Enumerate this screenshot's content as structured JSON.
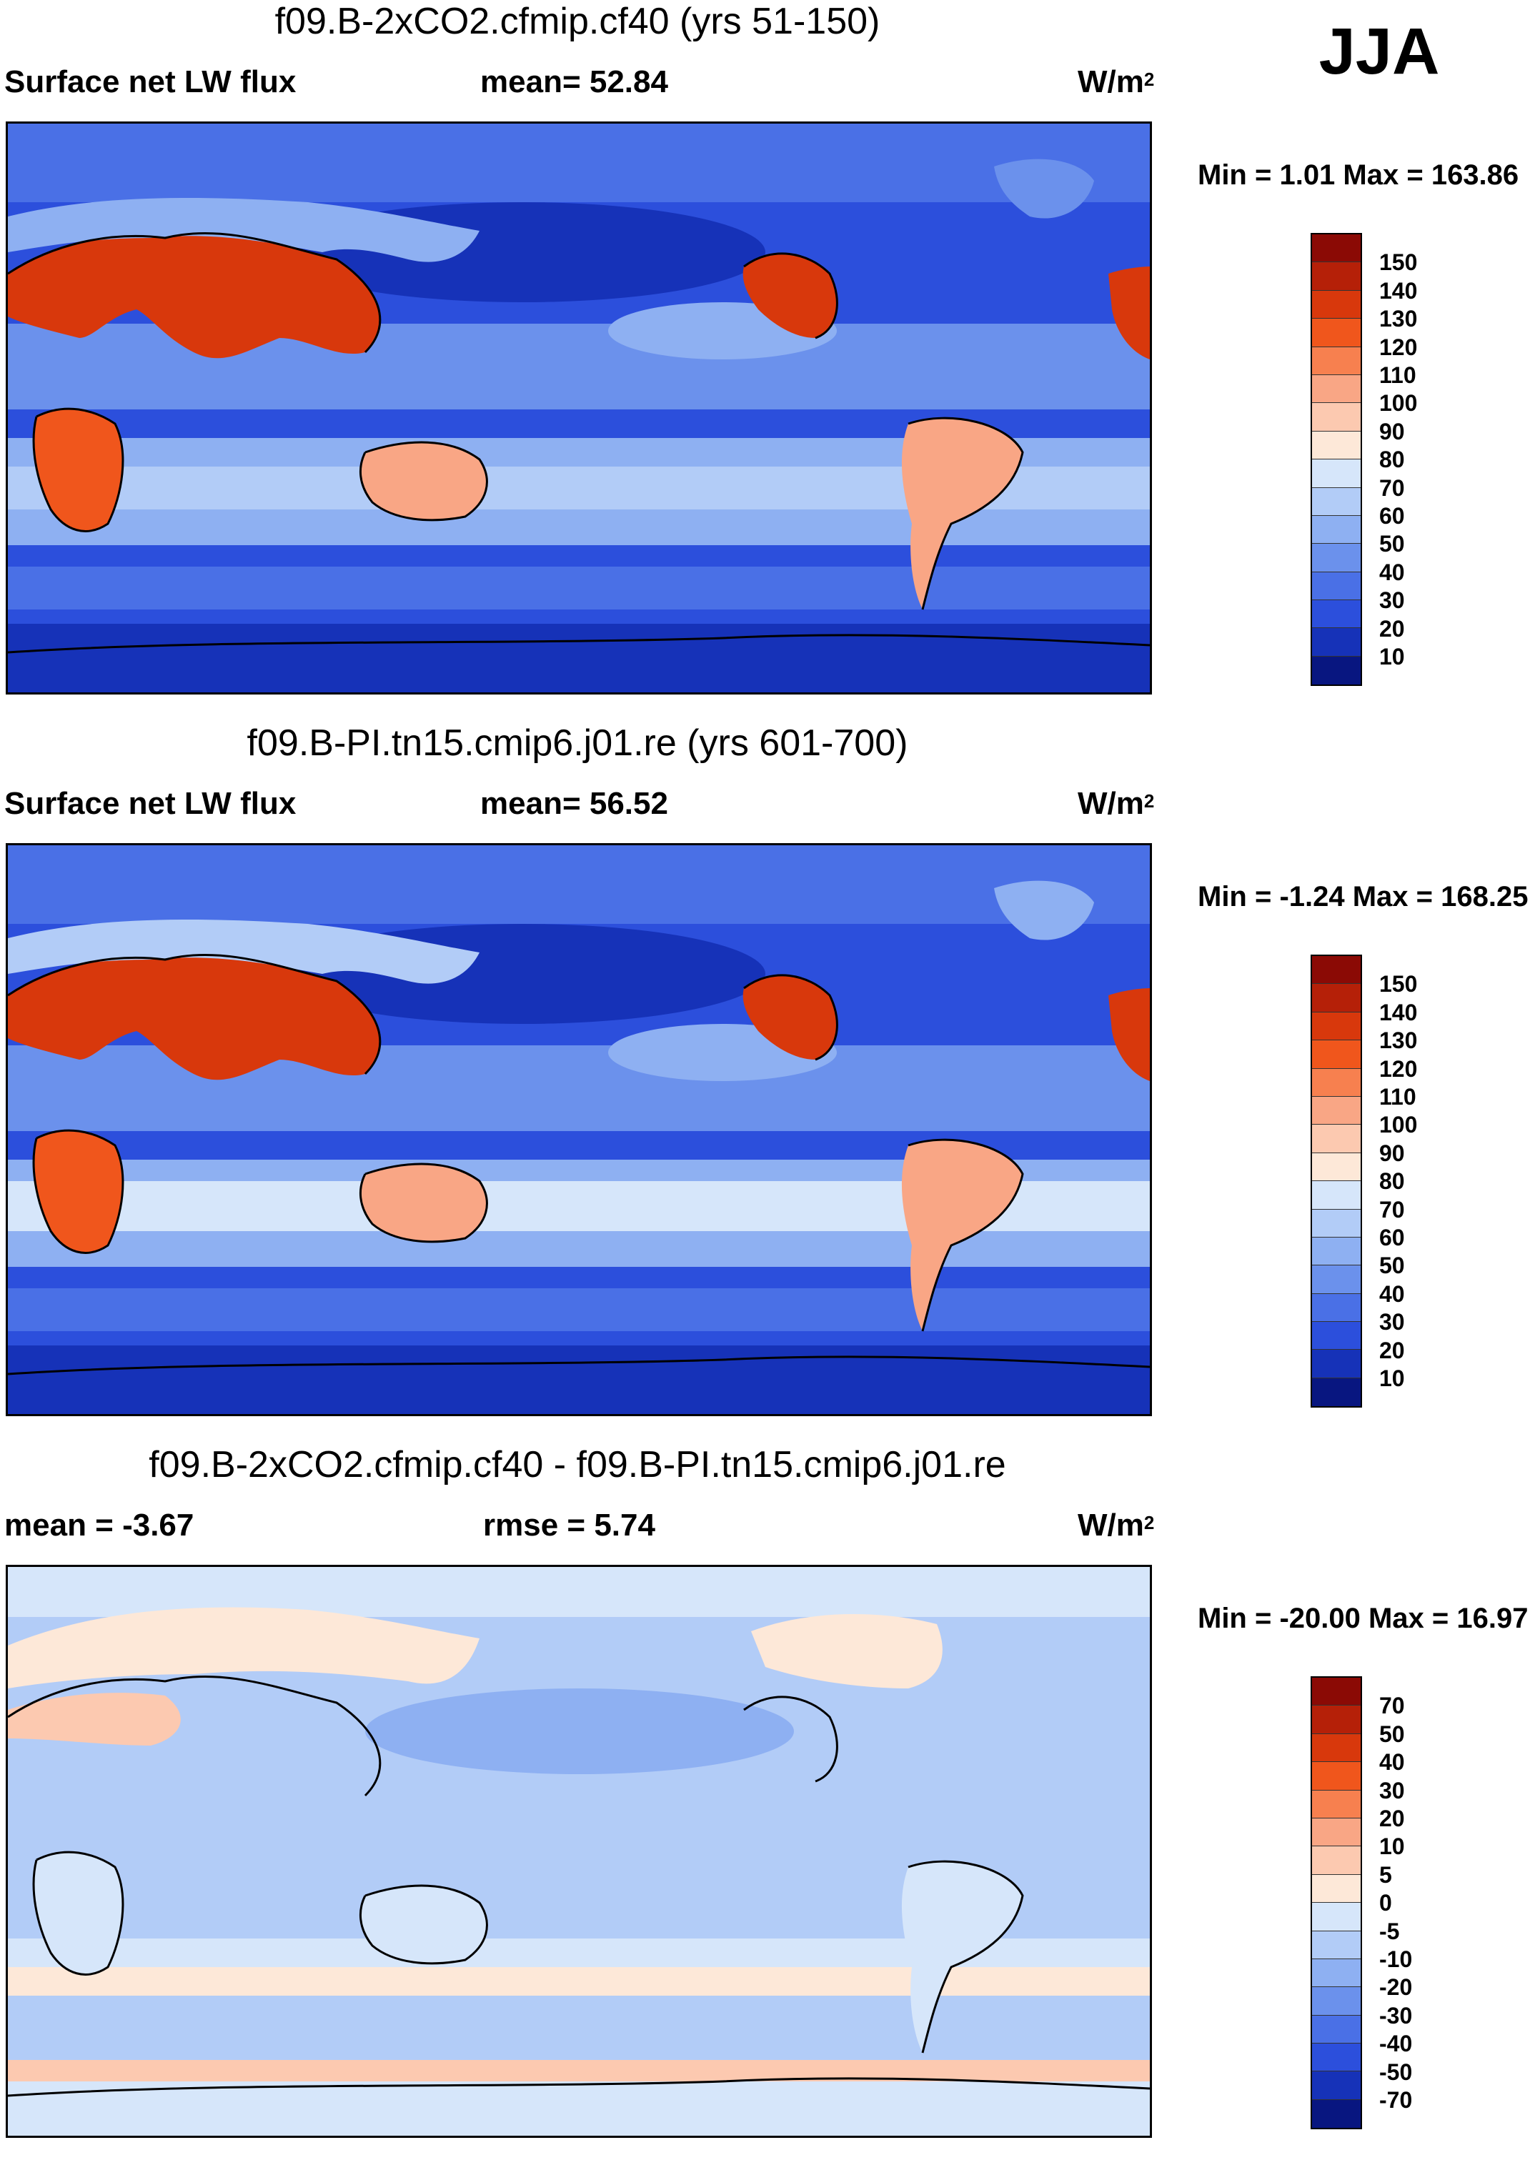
{
  "season_label": "JJA",
  "panels": [
    {
      "title": "f09.B-2xCO2.cfmip.cf40 (yrs 51-150)",
      "left_label": "Surface net LW flux",
      "mid_label": "mean=  52.84",
      "unit": "W/m",
      "unit_sup": "2",
      "minmax": "Min =   1.01 Max = 163.86",
      "colorbar": {
        "ticks": [
          "150",
          "140",
          "130",
          "120",
          "110",
          "100",
          "90",
          "80",
          "70",
          "60",
          "50",
          "40",
          "30",
          "20",
          "10"
        ],
        "colors": [
          "#8b0a05",
          "#b52008",
          "#d8380c",
          "#f0561c",
          "#f7804f",
          "#f9a685",
          "#fcc9b0",
          "#fde8d8",
          "#d6e6fa",
          "#b2ccf7",
          "#8eb0f2",
          "#6b91ec",
          "#4a70e6",
          "#2c4fdc",
          "#1632b8",
          "#081680"
        ]
      }
    },
    {
      "title": "f09.B-PI.tn15.cmip6.j01.re (yrs 601-700)",
      "left_label": "Surface net LW flux",
      "mid_label": "mean=  56.52",
      "unit": "W/m",
      "unit_sup": "2",
      "minmax": "Min =  -1.24 Max = 168.25",
      "colorbar": {
        "ticks": [
          "150",
          "140",
          "130",
          "120",
          "110",
          "100",
          "90",
          "80",
          "70",
          "60",
          "50",
          "40",
          "30",
          "20",
          "10"
        ],
        "colors": [
          "#8b0a05",
          "#b52008",
          "#d8380c",
          "#f0561c",
          "#f7804f",
          "#f9a685",
          "#fcc9b0",
          "#fde8d8",
          "#d6e6fa",
          "#b2ccf7",
          "#8eb0f2",
          "#6b91ec",
          "#4a70e6",
          "#2c4fdc",
          "#1632b8",
          "#081680"
        ]
      }
    },
    {
      "title": "f09.B-2xCO2.cfmip.cf40 - f09.B-PI.tn15.cmip6.j01.re",
      "left_label": "mean =  -3.67",
      "mid_label": "rmse =    5.74",
      "unit": "W/m",
      "unit_sup": "2",
      "minmax": "Min = -20.00 Max =  16.97",
      "colorbar": {
        "ticks": [
          "70",
          "50",
          "40",
          "30",
          "20",
          "10",
          "5",
          "0",
          "-5",
          "-10",
          "-20",
          "-30",
          "-40",
          "-50",
          "-70"
        ],
        "colors": [
          "#8b0a05",
          "#b52008",
          "#d8380c",
          "#f0561c",
          "#f7804f",
          "#f9a685",
          "#fcc9b0",
          "#fde8d8",
          "#d6e6fa",
          "#b2ccf7",
          "#8eb0f2",
          "#6b91ec",
          "#4a70e6",
          "#2c4fdc",
          "#1632b8",
          "#081680"
        ]
      }
    }
  ]
}
